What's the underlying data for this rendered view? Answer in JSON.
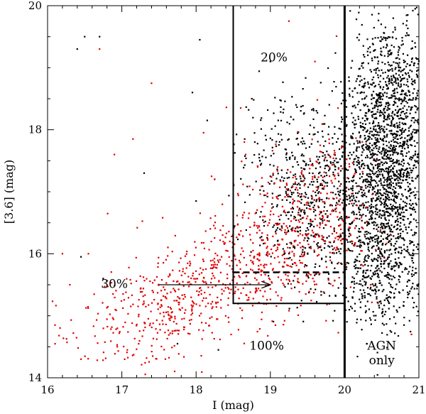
{
  "chart_data": {
    "type": "scatter",
    "xlabel": "I (mag)",
    "ylabel": "[3.6] (mag)",
    "xlim": [
      16,
      21
    ],
    "ylim": [
      14,
      20
    ],
    "xticks": [
      "16",
      "17",
      "18",
      "19",
      "20",
      "21"
    ],
    "yticks": [
      "14",
      "16",
      "18",
      "20"
    ],
    "grid": false,
    "colors": {
      "series_red": "#e00000",
      "series_black": "#000000",
      "frame": "#000000"
    },
    "series": [
      {
        "color": "#e00000",
        "clusters": [
          {
            "center": [
              17.6,
              15.15
            ],
            "spread": [
              0.45,
              0.35
            ],
            "count": 230
          },
          {
            "center": [
              18.5,
              15.7
            ],
            "spread": [
              0.5,
              0.45
            ],
            "count": 300
          },
          {
            "center": [
              19.3,
              16.4
            ],
            "spread": [
              0.45,
              0.55
            ],
            "count": 330
          },
          {
            "center": [
              19.8,
              17.0
            ],
            "spread": [
              0.25,
              0.7
            ],
            "count": 120
          },
          {
            "center": [
              17.0,
              14.6
            ],
            "spread": [
              0.45,
              0.3
            ],
            "count": 80
          }
        ],
        "points": [
          [
            16.7,
            19.3
          ],
          [
            17.4,
            18.75
          ],
          [
            17.15,
            17.85
          ],
          [
            16.9,
            17.6
          ],
          [
            18.1,
            17.95
          ],
          [
            18.6,
            18.35
          ],
          [
            19.25,
            19.75
          ],
          [
            19.6,
            19.1
          ],
          [
            16.2,
            16.0
          ],
          [
            16.55,
            16.0
          ],
          [
            16.3,
            15.5
          ],
          [
            16.1,
            14.85
          ],
          [
            16.45,
            14.3
          ],
          [
            20.45,
            15.2
          ],
          [
            20.9,
            14.7
          ],
          [
            20.35,
            15.5
          ],
          [
            18.65,
            17.8
          ],
          [
            18.25,
            17.2
          ]
        ]
      },
      {
        "color": "#000000",
        "clusters": [
          {
            "center": [
              20.55,
              17.2
            ],
            "spread": [
              0.32,
              0.95
            ],
            "count": 1900
          },
          {
            "center": [
              20.7,
              18.8
            ],
            "spread": [
              0.22,
              0.6
            ],
            "count": 350
          },
          {
            "center": [
              19.5,
              16.7
            ],
            "spread": [
              0.35,
              0.65
            ],
            "count": 450
          },
          {
            "center": [
              19.2,
              17.8
            ],
            "spread": [
              0.3,
              0.5
            ],
            "count": 120
          },
          {
            "center": [
              20.5,
              15.6
            ],
            "spread": [
              0.3,
              0.4
            ],
            "count": 220
          }
        ],
        "points": [
          [
            16.4,
            19.3
          ],
          [
            16.5,
            19.5
          ],
          [
            16.7,
            19.5
          ],
          [
            17.3,
            17.3
          ],
          [
            18.05,
            19.45
          ],
          [
            17.95,
            18.6
          ],
          [
            18.15,
            18.15
          ],
          [
            18.25,
            17.2
          ],
          [
            18.0,
            16.85
          ],
          [
            16.45,
            15.95
          ],
          [
            16.75,
            15.6
          ],
          [
            17.75,
            14.55
          ],
          [
            18.3,
            14.45
          ],
          [
            20.55,
            19.65
          ],
          [
            20.85,
            19.85
          ],
          [
            20.95,
            19.95
          ],
          [
            20.3,
            14.55
          ],
          [
            20.8,
            14.85
          ],
          [
            19.0,
            19.1
          ],
          [
            18.75,
            18.5
          ]
        ]
      }
    ],
    "lines": [
      {
        "style": "solid",
        "width": 3,
        "points": [
          [
            20,
            14
          ],
          [
            20,
            20
          ]
        ]
      },
      {
        "style": "solid",
        "width": 2,
        "points": [
          [
            18.5,
            20
          ],
          [
            18.5,
            15.2
          ],
          [
            20,
            15.2
          ]
        ]
      },
      {
        "style": "dashed",
        "width": 2.5,
        "points": [
          [
            18.5,
            15.7
          ],
          [
            20,
            15.7
          ]
        ]
      }
    ],
    "arrow": {
      "from": [
        17.5,
        15.5
      ],
      "to": [
        19.0,
        15.5
      ]
    },
    "annotations": [
      {
        "text": "20%",
        "x": 19.05,
        "y": 19.1
      },
      {
        "text": "30%",
        "x": 16.9,
        "y": 15.45
      },
      {
        "text": "100%",
        "x": 18.95,
        "y": 14.45
      },
      {
        "text": "AGN",
        "x": 20.5,
        "y": 14.45
      },
      {
        "text": "only",
        "x": 20.5,
        "y": 14.22
      }
    ]
  }
}
